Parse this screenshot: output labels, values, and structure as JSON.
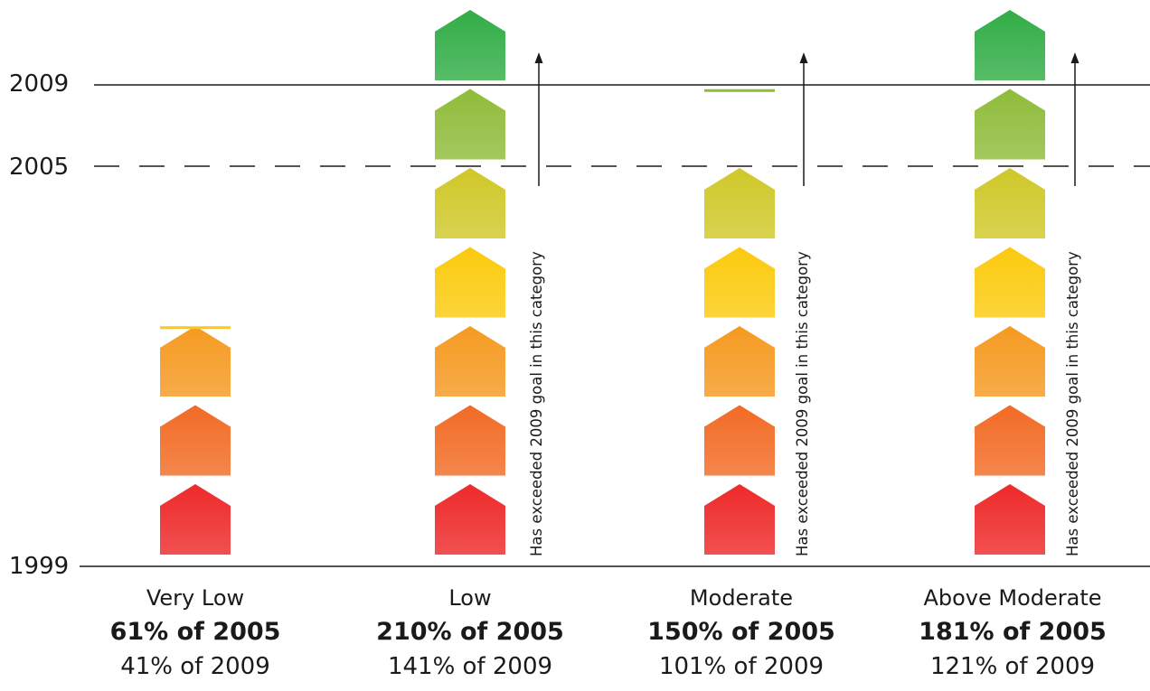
{
  "chart_data": {
    "type": "bar",
    "y_axis": {
      "ticks": [
        "1999",
        "2005",
        "2009"
      ]
    },
    "reference_lines": [
      {
        "label": "2009",
        "style": "solid"
      },
      {
        "label": "2005",
        "style": "dashed"
      }
    ],
    "categories": [
      "Very Low",
      "Low",
      "Moderate",
      "Above Moderate"
    ],
    "houses_shown": [
      3,
      7,
      5,
      7
    ],
    "fill_level_houses": [
      3.1,
      7.0,
      6.1,
      7.0
    ],
    "percent_of_2005": [
      61,
      210,
      150,
      181
    ],
    "percent_of_2005_labels": [
      "61% of 2005",
      "210% of 2005",
      "150% of 2005",
      "181% of 2005"
    ],
    "percent_of_2009_labels": [
      "41% of 2009",
      "141% of 2009",
      "101% of 2009",
      "121% of 2009"
    ],
    "annotations": [
      {
        "category": "Low",
        "text": "Has exceeded 2009 goal in this category"
      },
      {
        "category": "Moderate",
        "text": "Has exceeded 2009 goal in this category"
      },
      {
        "category": "Above Moderate",
        "text": "Has exceeded 2009 goal in this category"
      }
    ],
    "house_colors": [
      "#ee2a2a",
      "#f26b25",
      "#f59a22",
      "#fbca0e",
      "#cfc829",
      "#8fbc3a",
      "#32ad47"
    ],
    "grid": false
  }
}
